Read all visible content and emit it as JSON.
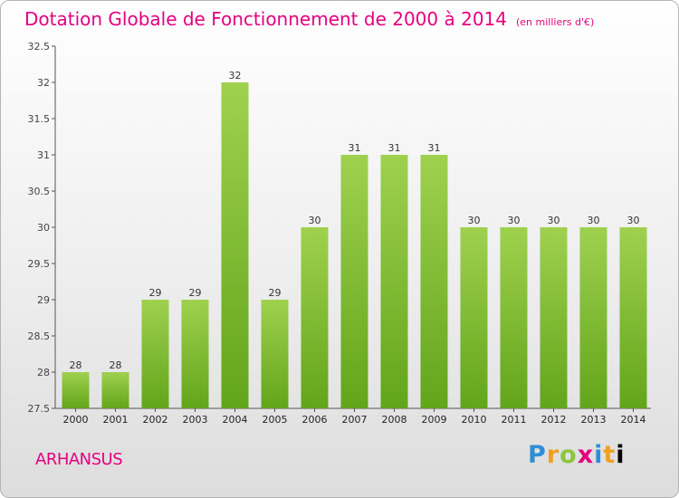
{
  "title": "Dotation Globale de Fonctionnement de 2000 à 2014",
  "unit": "(en milliers d'€)",
  "commune": "ARHANSUS",
  "brand": "Proxiti",
  "colors": {
    "bar_top": "#9fd14f",
    "bar_bottom": "#62a51a",
    "accent": "#e4007f"
  },
  "chart_data": {
    "type": "bar",
    "title": "Dotation Globale de Fonctionnement de 2000 à 2014",
    "subtitle": "(en milliers d'€)",
    "xlabel": "",
    "ylabel": "",
    "ylim": [
      27.5,
      32.5
    ],
    "yticks": [
      "27.5",
      "28",
      "28.5",
      "29",
      "29.5",
      "30",
      "30.5",
      "31",
      "31.5",
      "32",
      "32.5"
    ],
    "categories": [
      "2000",
      "2001",
      "2002",
      "2003",
      "2004",
      "2005",
      "2006",
      "2007",
      "2008",
      "2009",
      "2010",
      "2011",
      "2012",
      "2013",
      "2014"
    ],
    "values": [
      28,
      28,
      29,
      29,
      32,
      29,
      30,
      31,
      31,
      31,
      30,
      30,
      30,
      30,
      30
    ],
    "labels": [
      "28",
      "28",
      "29",
      "29",
      "32",
      "29",
      "30",
      "31",
      "31",
      "31",
      "30",
      "30",
      "30",
      "30",
      "30"
    ],
    "grid": false,
    "legend": "none"
  }
}
